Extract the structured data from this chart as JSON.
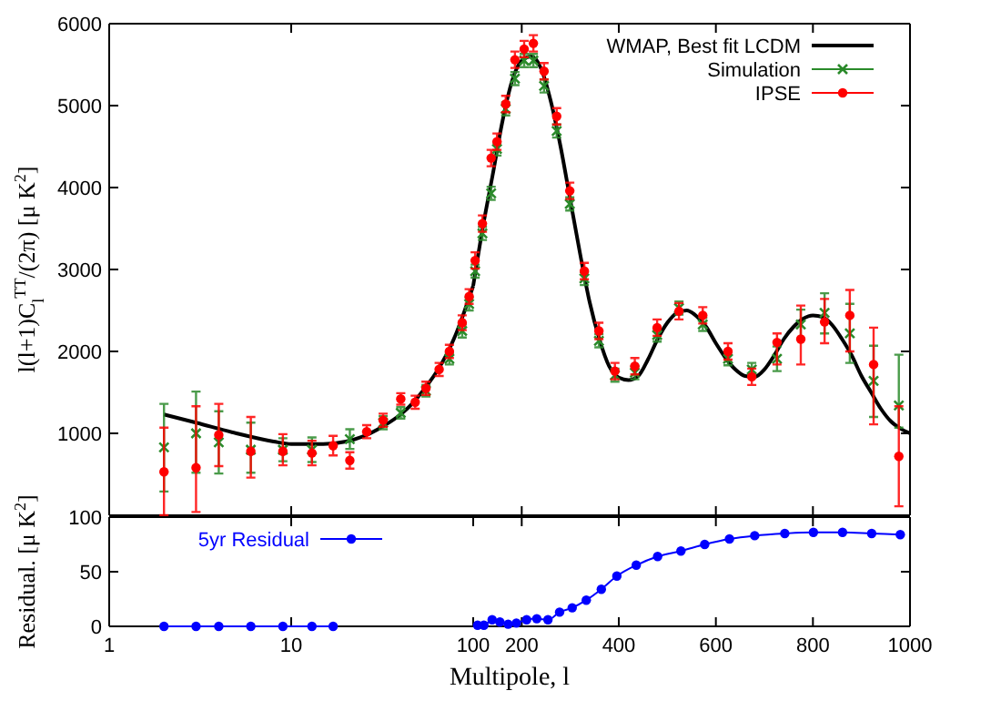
{
  "chart_data": [
    {
      "type": "scatter",
      "ylabel": "l(l+1)C$_{l}$$^{TT}$/(2π) [μ K$^{2}$]",
      "log": "x",
      "xlim": [
        1,
        100
      ],
      "xticks": [
        {
          "value": 1,
          "label": null
        },
        {
          "value": 10,
          "label": null
        }
      ],
      "ylim": [
        0,
        6000
      ],
      "yticks": [
        1000,
        2000,
        3000,
        4000,
        5000,
        6000
      ],
      "tick_labels": "y",
      "series": [
        {
          "type": "line",
          "color": "#000000",
          "x": [
            2,
            3,
            5,
            8,
            10,
            15,
            20,
            30,
            50,
            80,
            100
          ],
          "values": [
            1230,
            1130,
            1000,
            900,
            870,
            870,
            900,
            1050,
            1450,
            2200,
            2800
          ]
        },
        {
          "color": "#2a8a2a",
          "marker": "cross",
          "x": [
            2,
            3,
            4,
            6,
            9,
            13,
            21,
            32,
            40,
            55,
            74,
            87,
            95
          ],
          "values": [
            830,
            1000,
            890,
            800,
            800,
            800,
            930,
            1130,
            1250,
            1520,
            1910,
            2250,
            2580
          ],
          "errors": [
            [
              290,
              1360
            ],
            [
              520,
              1510
            ],
            [
              510,
              1270
            ],
            [
              520,
              1130
            ],
            [
              660,
              940
            ],
            150,
            120,
            80,
            70,
            70,
            70,
            80,
            80
          ]
        },
        {
          "color": "#ff0000",
          "marker": "circle",
          "x": [
            2,
            3,
            4,
            6,
            9,
            13,
            17,
            21,
            26,
            32,
            40,
            48,
            55,
            65,
            74,
            87,
            95
          ],
          "values": [
            530,
            580,
            980,
            780,
            780,
            760,
            850,
            670,
            1020,
            1160,
            1420,
            1380,
            1550,
            1780,
            2000,
            2350,
            2670
          ],
          "errors": [
            [
              0,
              1070
            ],
            [
              40,
              1330
            ],
            [
              600,
              1360
            ],
            [
              460,
              1200
            ],
            [
              610,
              990
            ],
            [
              610,
              910
            ],
            [
              730,
              970
            ],
            [
              570,
              770
            ],
            80,
            80,
            70,
            80,
            80,
            80,
            80,
            90,
            90
          ]
        }
      ]
    },
    {
      "type": "scatter",
      "xlim": [
        100,
        1000
      ],
      "xticks": [
        {
          "value": 200,
          "label": null
        },
        {
          "value": 400,
          "label": null
        },
        {
          "value": 600,
          "label": null
        },
        {
          "value": 800,
          "label": null
        }
      ],
      "ylim": [
        0,
        6000
      ],
      "yticks": [
        {
          "value": 1000,
          "label": null
        },
        {
          "value": 2000,
          "label": null
        },
        {
          "value": 3000,
          "label": null
        },
        {
          "value": 4000,
          "label": null
        },
        {
          "value": 5000,
          "label": null
        }
      ],
      "tick_labels": false,
      "legend": "top right",
      "series": [
        {
          "type": "line",
          "name": "WMAP, Best fit LCDM",
          "color": "#000000",
          "x": [
            100,
            120,
            140,
            160,
            180,
            200,
            220,
            240,
            260,
            280,
            300,
            320,
            340,
            360,
            380,
            400,
            420,
            440,
            460,
            480,
            500,
            520,
            540,
            560,
            580,
            600,
            620,
            640,
            660,
            680,
            700,
            720,
            740,
            760,
            780,
            800,
            820,
            840,
            860,
            880,
            900,
            920,
            940,
            960,
            980,
            1000
          ],
          "values": [
            2800,
            3520,
            4150,
            4800,
            5300,
            5550,
            5600,
            5450,
            5050,
            4500,
            3850,
            3200,
            2600,
            2150,
            1820,
            1680,
            1650,
            1700,
            1900,
            2150,
            2350,
            2470,
            2500,
            2430,
            2300,
            2100,
            1920,
            1780,
            1700,
            1690,
            1780,
            1950,
            2150,
            2300,
            2400,
            2440,
            2420,
            2320,
            2150,
            1950,
            1700,
            1500,
            1300,
            1150,
            1060,
            1000
          ]
        },
        {
          "name": "Simulation",
          "color": "#2a8a2a",
          "marker": "cross",
          "x": [
            104,
            119,
            137,
            149,
            167,
            186,
            205,
            224,
            246,
            272,
            299,
            329,
            359,
            392,
            433,
            479,
            524,
            573,
            625,
            674,
            726,
            775,
            824,
            876,
            925,
            977
          ],
          "values": [
            2980,
            3440,
            3930,
            4470,
            4960,
            5330,
            5550,
            5550,
            5240,
            4690,
            3800,
            2890,
            2130,
            1710,
            1740,
            2200,
            2530,
            2330,
            1910,
            1780,
            1910,
            2330,
            2470,
            2220,
            1640,
            1340
          ],
          "errors": [
            80,
            80,
            80,
            80,
            80,
            80,
            80,
            80,
            80,
            80,
            80,
            80,
            80,
            80,
            80,
            80,
            80,
            80,
            80,
            80,
            150,
            [
              2150,
              2510
            ],
            [
              2220,
              2710
            ],
            [
              1860,
              2580
            ],
            [
              1200,
              2070
            ],
            [
              1070,
              1960
            ]
          ]
        },
        {
          "name": "IPSE",
          "color": "#ff0000",
          "marker": "circle",
          "x": [
            104,
            119,
            137,
            149,
            167,
            186,
            205,
            224,
            246,
            272,
            299,
            329,
            359,
            392,
            433,
            479,
            524,
            573,
            625,
            674,
            726,
            775,
            824,
            876,
            925,
            977
          ],
          "values": [
            3110,
            3560,
            4360,
            4560,
            5020,
            5560,
            5690,
            5760,
            5420,
            4870,
            3960,
            2980,
            2250,
            1760,
            1820,
            2290,
            2490,
            2440,
            2000,
            1690,
            2110,
            2150,
            2360,
            2440,
            1840,
            720
          ],
          "errors": [
            100,
            100,
            100,
            100,
            100,
            100,
            100,
            100,
            100,
            100,
            100,
            100,
            100,
            100,
            100,
            100,
            100,
            100,
            100,
            100,
            [
              1840,
              2220
            ],
            [
              1840,
              2560
            ],
            [
              2100,
              2640
            ],
            [
              2000,
              2750
            ],
            [
              1110,
              2290
            ],
            [
              110,
              1330
            ]
          ]
        }
      ]
    },
    {
      "type": "line",
      "ylabel": "Residual. [μ K$^{2}$]",
      "log": "x",
      "xlim": [
        1,
        100
      ],
      "xticks": [
        1,
        10
      ],
      "ylim": [
        0,
        100
      ],
      "yticks": [
        0,
        50,
        100
      ],
      "legend": "top",
      "series": [
        {
          "name": "5yr Residual",
          "color": "#0000ff",
          "marker": "circle",
          "x": [
            2,
            3,
            4,
            6,
            9,
            13,
            17
          ],
          "values": [
            0,
            0,
            0,
            0,
            0,
            0,
            0
          ]
        }
      ]
    },
    {
      "type": "line",
      "xlabel": "Multipole, l",
      "xlim": [
        100,
        1000
      ],
      "xticks": [
        100,
        200,
        400,
        600,
        800,
        1000
      ],
      "ylim": [
        0,
        100
      ],
      "yticks": [
        {
          "value": 50,
          "label": null
        }
      ],
      "tick_labels": "x",
      "series": [
        {
          "color": "#0000ff",
          "marker": "circle",
          "x": [
            109,
            122,
            139,
            155,
            172,
            189,
            210,
            231,
            254,
            278,
            304,
            333,
            364,
            396,
            436,
            480,
            528,
            577,
            628,
            680,
            742,
            801,
            861,
            921,
            980
          ],
          "values": [
            1,
            1,
            6,
            4,
            2,
            3,
            6,
            7,
            6,
            13,
            17,
            24,
            34,
            46,
            56,
            64,
            69,
            75,
            80,
            83,
            85,
            86,
            86,
            85,
            84
          ]
        }
      ]
    }
  ]
}
